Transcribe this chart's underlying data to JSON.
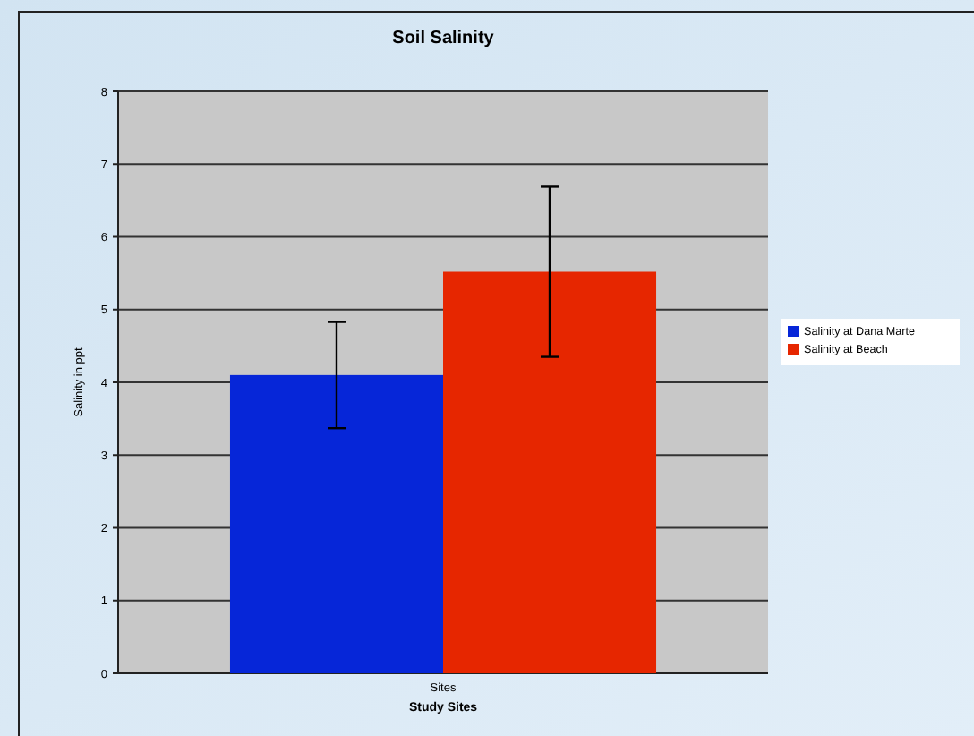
{
  "chart_data": {
    "type": "bar",
    "title": "Soil Salinity",
    "xlabel": "Study Sites",
    "ylabel": "Salinity in ppt",
    "categories": [
      "Sites"
    ],
    "series": [
      {
        "name": "Salinity at Dana Marte",
        "color": "#0626d8",
        "values": [
          4.1
        ],
        "errors": [
          0.73
        ]
      },
      {
        "name": "Salinity at Beach",
        "color": "#e62600",
        "values": [
          5.52
        ],
        "errors": [
          1.17
        ]
      }
    ],
    "ylim": [
      0,
      8
    ],
    "yticks": [
      0,
      1,
      2,
      3,
      4,
      5,
      6,
      7,
      8
    ],
    "grid": "y",
    "legend": "right"
  }
}
